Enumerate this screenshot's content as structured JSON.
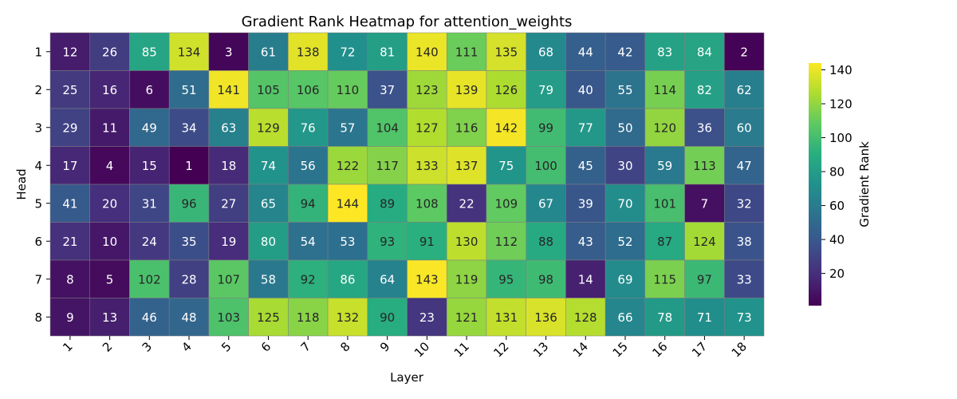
{
  "chart_data": {
    "type": "heatmap",
    "title": "Gradient Rank Heatmap for attention_weights",
    "xlabel": "Layer",
    "ylabel": "Head",
    "colorbar_label": "Gradient Rank",
    "colormap": "viridis",
    "vmin": 1,
    "vmax": 144,
    "colorbar_ticks": [
      20,
      40,
      60,
      80,
      100,
      120,
      140
    ],
    "x_categories": [
      "1",
      "2",
      "3",
      "4",
      "5",
      "6",
      "7",
      "8",
      "9",
      "10",
      "11",
      "12",
      "13",
      "14",
      "15",
      "16",
      "17",
      "18"
    ],
    "y_categories": [
      "1",
      "2",
      "3",
      "4",
      "5",
      "6",
      "7",
      "8"
    ],
    "values": [
      [
        12,
        26,
        85,
        134,
        3,
        61,
        138,
        72,
        81,
        140,
        111,
        135,
        68,
        44,
        42,
        83,
        84,
        2
      ],
      [
        25,
        16,
        6,
        51,
        141,
        105,
        106,
        110,
        37,
        123,
        139,
        126,
        79,
        40,
        55,
        114,
        82,
        62
      ],
      [
        29,
        11,
        49,
        34,
        63,
        129,
        76,
        57,
        104,
        127,
        116,
        142,
        99,
        77,
        50,
        120,
        36,
        60
      ],
      [
        17,
        4,
        15,
        1,
        18,
        74,
        56,
        122,
        117,
        133,
        137,
        75,
        100,
        45,
        30,
        59,
        113,
        47
      ],
      [
        41,
        20,
        31,
        96,
        27,
        65,
        94,
        144,
        89,
        108,
        22,
        109,
        67,
        39,
        70,
        101,
        7,
        32
      ],
      [
        21,
        10,
        24,
        35,
        19,
        80,
        54,
        53,
        93,
        91,
        130,
        112,
        88,
        43,
        52,
        87,
        124,
        38
      ],
      [
        8,
        5,
        102,
        28,
        107,
        58,
        92,
        86,
        64,
        143,
        119,
        95,
        98,
        14,
        69,
        115,
        97,
        33
      ],
      [
        9,
        13,
        46,
        48,
        103,
        125,
        118,
        132,
        90,
        23,
        121,
        131,
        136,
        128,
        66,
        78,
        71,
        73
      ]
    ]
  }
}
